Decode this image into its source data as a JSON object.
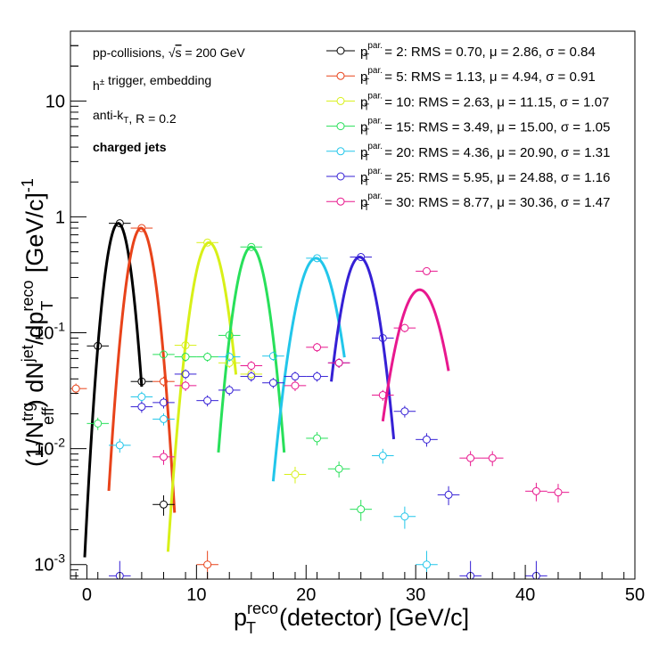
{
  "chart_data": {
    "type": "scatter",
    "title": "",
    "xlabel": {
      "main": "p",
      "sup": "reco",
      "sub": "T",
      "rest": "(detector) [GeV/c]"
    },
    "ylabel": {
      "p1": "(1/N",
      "p1_sup": "trg",
      "p1_sub": "eff",
      "p2": ") dN",
      "p2_sup": "jet",
      "p3": "/dp",
      "p3_sup": "reco",
      "p3_sub": "T",
      "p4": " [GeV/c]",
      "p4_sup": "-1"
    },
    "xlim": [
      -1.5,
      50
    ],
    "ylim": [
      0.00075,
      40
    ],
    "yscale": "log",
    "grid": false,
    "legend_position": "top-right",
    "x_ticks": [
      0,
      10,
      20,
      30,
      40,
      50
    ],
    "x_tick_labels": [
      "0",
      "10",
      "20",
      "30",
      "40",
      "50"
    ],
    "y_ticks": [
      0.001,
      0.01,
      0.1,
      1,
      10
    ],
    "y_tick_labels": [
      {
        "main": "10",
        "sup": "-3"
      },
      {
        "main": "10",
        "sup": "-2"
      },
      {
        "main": "10",
        "sup": "-1"
      },
      {
        "main": "1",
        "sup": ""
      },
      {
        "main": "10",
        "sup": ""
      }
    ],
    "annotations": [
      {
        "pre": "pp-collisions, ",
        "sqrt": "s",
        "post": " = 200 GeV",
        "bold": false
      },
      {
        "pre": "h",
        "sup": "±",
        "post": " trigger, embedding",
        "bold": false
      },
      {
        "pre": "anti-k",
        "sub": "T",
        "post": ", R = 0.2",
        "bold": false
      },
      {
        "pre": "charged jets",
        "bold": true
      }
    ],
    "series": [
      {
        "name": "p_T^{par.} = 2",
        "legend": {
          "pt": "2",
          "rest": ": RMS = 0.70, μ = 2.86, σ = 0.84"
        },
        "color": "#000000",
        "mu": 2.86,
        "sigma": 0.84,
        "peak": 0.88,
        "fit_range": [
          -0.2,
          5.0
        ],
        "points": [
          [
            1,
            0.077
          ],
          [
            3,
            0.88
          ],
          [
            5,
            0.038
          ],
          [
            7,
            0.0033
          ]
        ]
      },
      {
        "name": "p_T^{par.} = 5",
        "legend": {
          "pt": "5",
          "rest": ": RMS = 1.13, μ = 4.94, σ = 0.91"
        },
        "color": "#e8431a",
        "mu": 4.94,
        "sigma": 0.91,
        "peak": 0.8,
        "fit_range": [
          2.0,
          8.0
        ],
        "points": [
          [
            -1,
            0.033
          ],
          [
            5,
            0.8
          ],
          [
            7,
            0.038
          ],
          [
            11,
            0.001
          ]
        ]
      },
      {
        "name": "p_T^{par.} = 10",
        "legend": {
          "pt": "10",
          "rest": ": RMS = 2.63, μ = 11.15, σ = 1.07"
        },
        "color": "#d8f018",
        "mu": 11.15,
        "sigma": 1.07,
        "peak": 0.6,
        "fit_range": [
          7.4,
          13.6
        ],
        "points": [
          [
            9,
            0.078
          ],
          [
            11,
            0.6
          ],
          [
            13,
            0.055
          ],
          [
            15,
            0.044
          ],
          [
            19,
            0.006
          ]
        ]
      },
      {
        "name": "p_T^{par.} = 15",
        "legend": {
          "pt": "15",
          "rest": ": RMS = 3.49, μ = 15.00, σ = 1.05"
        },
        "color": "#28e05a",
        "mu": 15.0,
        "sigma": 1.05,
        "peak": 0.55,
        "fit_range": [
          12.0,
          18.0
        ],
        "points": [
          [
            1,
            0.0165
          ],
          [
            7,
            0.065
          ],
          [
            9,
            0.062
          ],
          [
            11,
            0.062
          ],
          [
            13,
            0.095
          ],
          [
            15,
            0.55
          ],
          [
            21,
            0.0123
          ],
          [
            23,
            0.0067
          ],
          [
            25,
            0.003
          ]
        ]
      },
      {
        "name": "p_T^{par.} = 20",
        "legend": {
          "pt": "20",
          "rest": ": RMS = 4.36, μ = 20.90, σ = 1.31"
        },
        "color": "#22c6ea",
        "mu": 20.9,
        "sigma": 1.31,
        "peak": 0.44,
        "fit_range": [
          17.0,
          23.5
        ],
        "points": [
          [
            3,
            0.0107
          ],
          [
            5,
            0.028
          ],
          [
            7,
            0.018
          ],
          [
            13,
            0.062
          ],
          [
            17,
            0.063
          ],
          [
            21,
            0.44
          ],
          [
            27,
            0.0087
          ],
          [
            29,
            0.0026
          ],
          [
            31,
            0.001
          ]
        ]
      },
      {
        "name": "p_T^{par.} = 25",
        "legend": {
          "pt": "25",
          "rest": ": RMS = 5.95, μ = 24.88, σ = 1.16"
        },
        "color": "#3520d5",
        "mu": 24.88,
        "sigma": 1.16,
        "peak": 0.45,
        "fit_range": [
          22.3,
          28.0
        ],
        "points": [
          [
            3,
            0.0008
          ],
          [
            5,
            0.023
          ],
          [
            7,
            0.025
          ],
          [
            9,
            0.044
          ],
          [
            11,
            0.026
          ],
          [
            13,
            0.032
          ],
          [
            15,
            0.042
          ],
          [
            17,
            0.037
          ],
          [
            19,
            0.042
          ],
          [
            21,
            0.042
          ],
          [
            23,
            0.055
          ],
          [
            25,
            0.45
          ],
          [
            27,
            0.09
          ],
          [
            29,
            0.021
          ],
          [
            31,
            0.012
          ],
          [
            33,
            0.004
          ],
          [
            35,
            0.0008
          ],
          [
            41,
            0.0008
          ]
        ]
      },
      {
        "name": "p_T^{par.} = 30",
        "legend": {
          "pt": "30",
          "rest": ": RMS = 8.77, μ = 30.36, σ = 1.47"
        },
        "color": "#e8188e",
        "mu": 30.36,
        "sigma": 1.47,
        "peak": 0.235,
        "fit_range": [
          27.0,
          33.0
        ],
        "points": [
          [
            7,
            0.0085
          ],
          [
            9,
            0.035
          ],
          [
            15,
            0.052
          ],
          [
            19,
            0.035
          ],
          [
            21,
            0.075
          ],
          [
            23,
            0.055
          ],
          [
            27,
            0.029
          ],
          [
            29,
            0.11
          ],
          [
            31,
            0.34
          ],
          [
            35,
            0.0083
          ],
          [
            37,
            0.0083
          ],
          [
            41,
            0.0043
          ],
          [
            43,
            0.0042
          ]
        ]
      }
    ]
  }
}
